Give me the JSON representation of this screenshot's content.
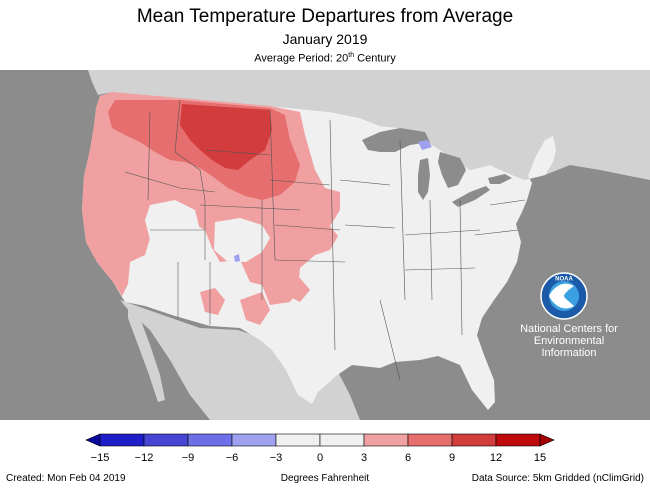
{
  "header": {
    "title": "Mean Temperature Departures from Average",
    "subtitle": "January 2019",
    "period_prefix": "Average Period: 20",
    "period_sup": "th",
    "period_suffix": " Century"
  },
  "logo": {
    "line1": "National Centers for",
    "line2": "Environmental",
    "line3": "Information"
  },
  "legend": {
    "ticks": [
      "−15",
      "−12",
      "−9",
      "−6",
      "−3",
      "0",
      "3",
      "6",
      "9",
      "12",
      "15"
    ],
    "colors": [
      "#1e1ec8",
      "#4646d2",
      "#6e6ee6",
      "#a0a0f0",
      "#f0f0f0",
      "#f0f0f0",
      "#f0a0a0",
      "#e66e6e",
      "#d23c3c",
      "#be0a0a"
    ],
    "units": "Degrees Fahrenheit"
  },
  "footer": {
    "created": "Created: Mon Feb 04 2019",
    "source": "Data Source: 5km Gridded (nClimGrid)"
  },
  "map_colors": {
    "ocean": "#8c8c8c",
    "foreign_land": "#d2d2d2",
    "great_lakes": "#8c8c8c",
    "near_normal": "#f0f0f0",
    "warm_3_6": "#f0a0a0",
    "warm_6_9": "#e66e6e",
    "warm_9_12": "#d23c3c",
    "cool_3_6": "#a0a0f0"
  }
}
